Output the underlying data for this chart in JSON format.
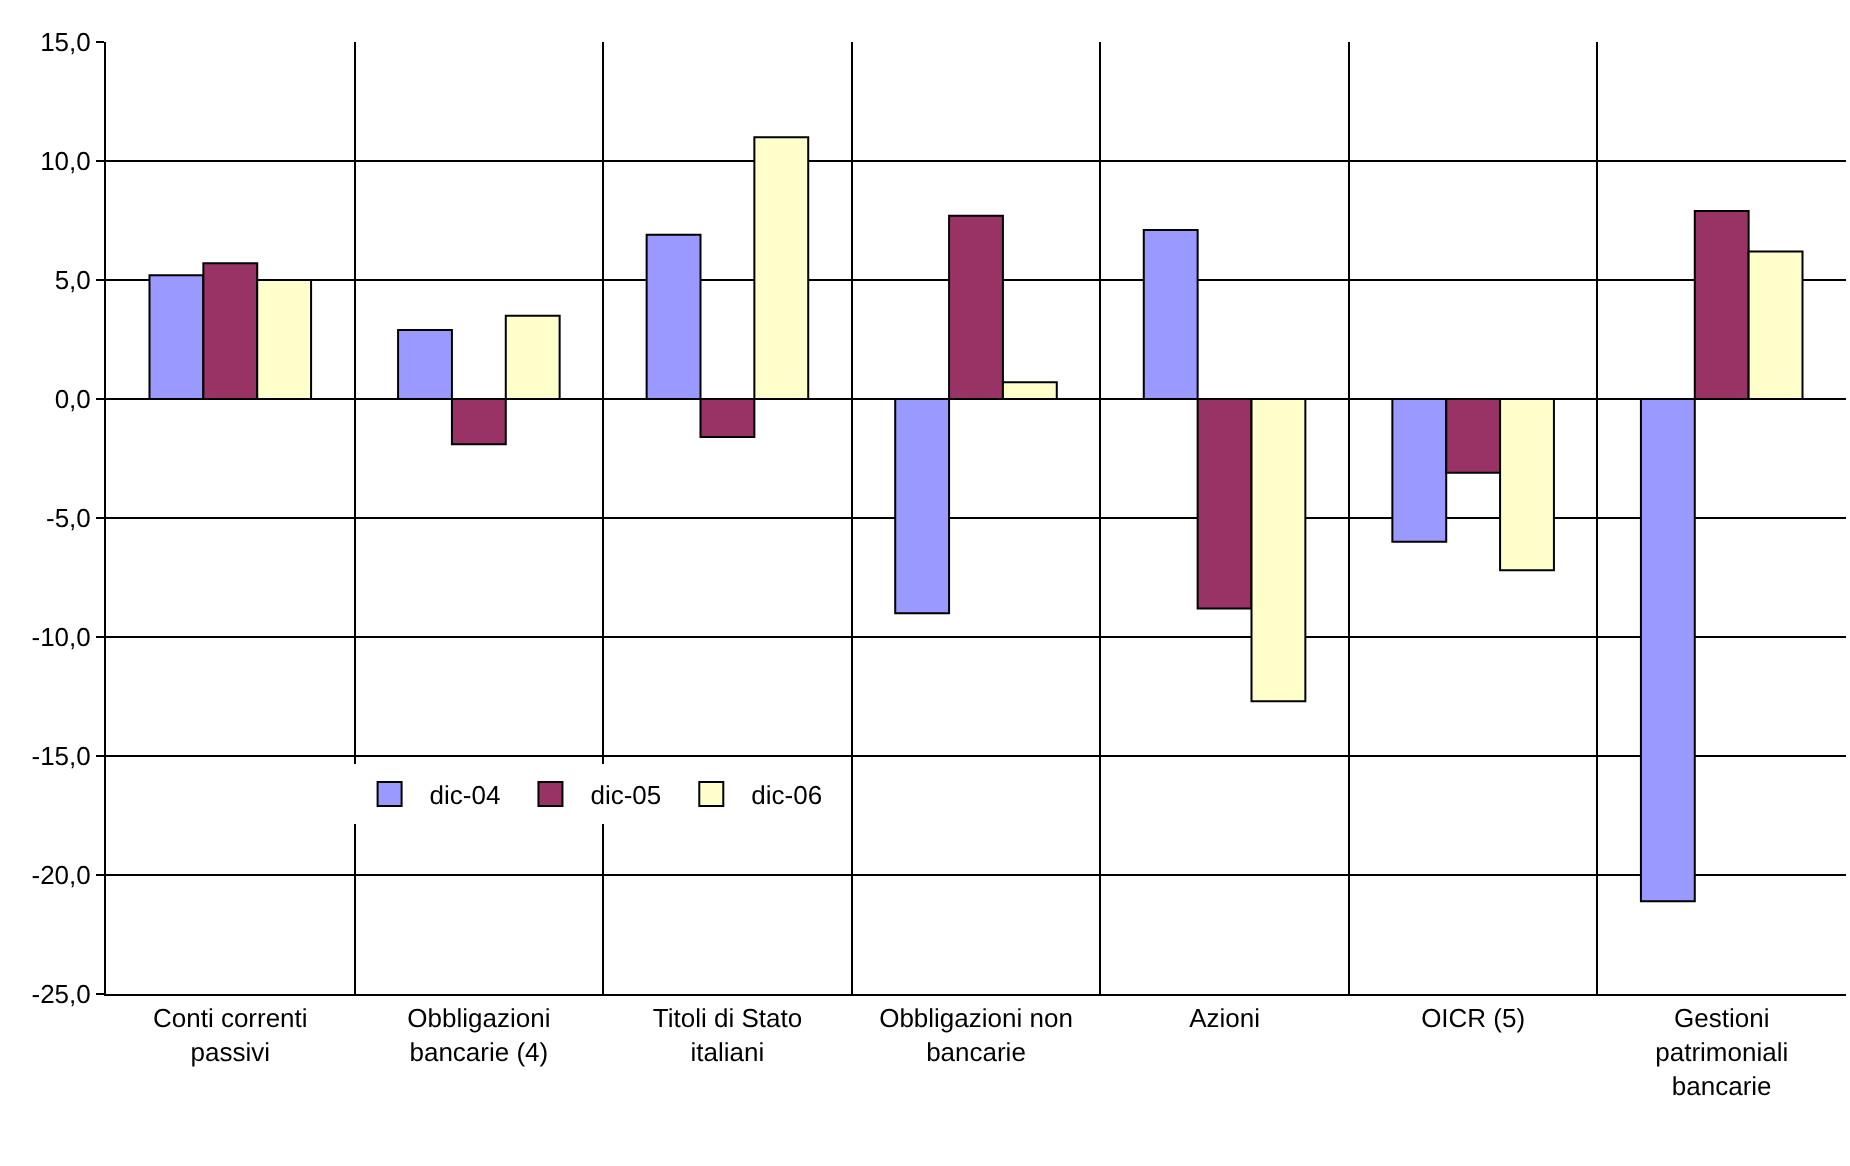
{
  "chart_data": {
    "type": "bar",
    "categories": [
      "Conti correnti passivi",
      "Obbligazioni bancarie (4)",
      "Titoli di Stato italiani",
      "Obbligazioni non bancarie",
      "Azioni",
      "OICR (5)",
      "Gestioni patrimoniali bancarie"
    ],
    "series": [
      {
        "name": "dic-04",
        "color": "#9999ff",
        "values": [
          5.2,
          2.9,
          6.9,
          -9.0,
          7.1,
          -6.0,
          -21.1
        ]
      },
      {
        "name": "dic-05",
        "color": "#993366",
        "values": [
          5.7,
          -1.9,
          -1.6,
          7.7,
          -8.8,
          -3.1,
          7.9
        ]
      },
      {
        "name": "dic-06",
        "color": "#ffffcc",
        "values": [
          5.0,
          3.5,
          11.0,
          0.7,
          -12.7,
          -7.2,
          6.2
        ]
      }
    ],
    "ylim": [
      -25,
      15
    ],
    "yticks": [
      {
        "value": -25,
        "label": "-25,0"
      },
      {
        "value": -20,
        "label": "-20,0"
      },
      {
        "value": -15,
        "label": "-15,0"
      },
      {
        "value": -10,
        "label": "-10,0"
      },
      {
        "value": -5,
        "label": "-5,0"
      },
      {
        "value": 0,
        "label": "0,0"
      },
      {
        "value": 5,
        "label": "5,0"
      },
      {
        "value": 10,
        "label": "10,0"
      },
      {
        "value": 15,
        "label": "15,0"
      }
    ],
    "grid": true,
    "legend": "bottom left"
  }
}
